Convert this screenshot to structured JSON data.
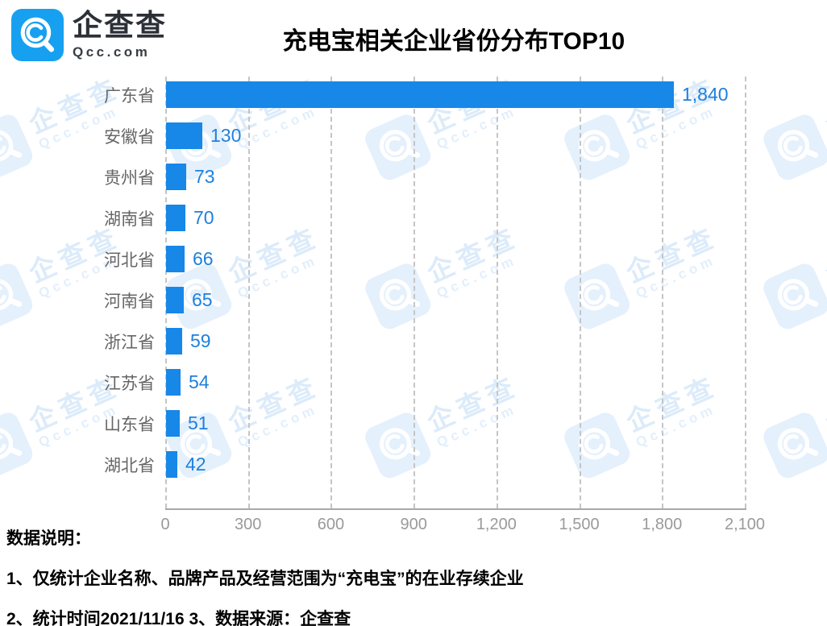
{
  "logo": {
    "brand": "企查查",
    "domain": "Qcc.com"
  },
  "title": "充电宝相关企业省份分布TOP10",
  "chart_data": {
    "type": "bar",
    "orientation": "horizontal",
    "title": "充电宝相关企业省份分布TOP10",
    "categories": [
      "广东省",
      "安徽省",
      "贵州省",
      "湖南省",
      "河北省",
      "河南省",
      "浙江省",
      "江苏省",
      "山东省",
      "湖北省"
    ],
    "values": [
      1840,
      130,
      73,
      70,
      66,
      65,
      59,
      54,
      51,
      42
    ],
    "value_labels": [
      "1,840",
      "130",
      "73",
      "70",
      "66",
      "65",
      "59",
      "54",
      "51",
      "42"
    ],
    "x_ticks": [
      "0",
      "300",
      "600",
      "900",
      "1,200",
      "1,500",
      "1,800",
      "2,100"
    ],
    "xlim": [
      0,
      2100
    ],
    "grid": true,
    "legend": false,
    "bar_color": "#1787e8",
    "value_color": "#1e80de",
    "category_color": "#666666",
    "tick_color": "#9a9a9a"
  },
  "watermark": {
    "brand": "企查查",
    "domain": "Qcc.com"
  },
  "footer": {
    "heading": "数据说明：",
    "note1": "1、仅统计企业名称、品牌产品及经营范围为“充电宝”的在业存续企业",
    "note2": "2、统计时间2021/11/16  3、数据来源：企查查"
  }
}
